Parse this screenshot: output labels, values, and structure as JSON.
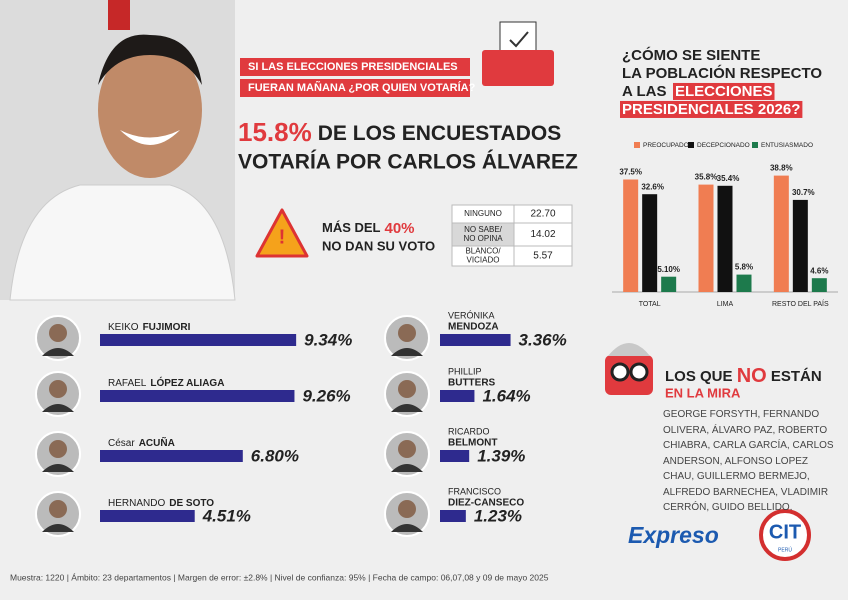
{
  "header": {
    "question": [
      "SI LAS ELECCIONES PRESIDENCIALES",
      "FUERAN MAÑANA ¿POR QUIEN VOTARÍA?"
    ],
    "headline": {
      "percent": "15.8%",
      "line1": "DE LOS ENCUESTADOS",
      "line2": "VOTARÍA POR CARLOS ÁLVAREZ"
    }
  },
  "warning": {
    "prefix": "MÁS DEL",
    "percent": "40%",
    "line2": "NO DAN SU VOTO"
  },
  "table": {
    "rows": [
      [
        [
          "NINGUNO"
        ],
        "22.70"
      ],
      [
        [
          "NO SABE/",
          "NO OPINA"
        ],
        "14.02"
      ],
      [
        [
          "BLANCO/",
          "VICIADO"
        ],
        "5.57"
      ]
    ]
  },
  "chart_data": [
    {
      "type": "bar",
      "title_lines": [
        "¿CÓMO SE SIENTE",
        "LA POBLACIÓN RESPECTO",
        "A LAS"
      ],
      "title_highlight": [
        "ELECCIONES",
        "PRESIDENCIALES 2026?"
      ],
      "categories": [
        "TOTAL",
        "LIMA",
        "RESTO DEL PAÍS"
      ],
      "ylim": [
        0,
        40
      ],
      "series": [
        {
          "name": "PREOCUPADO",
          "color": "#f07d52",
          "values": [
            37.5,
            35.8,
            38.8
          ],
          "value_labels": [
            "37.5%",
            "35.8%",
            "38.8%"
          ]
        },
        {
          "name": "DECEPCIONADO",
          "color": "#111111",
          "values": [
            32.6,
            35.4,
            30.7
          ],
          "value_labels": [
            "32.6%",
            "35.4%",
            "30.7%"
          ]
        },
        {
          "name": "ENTUSIASMADO",
          "color": "#1d7a4c",
          "values": [
            5.1,
            5.8,
            4.6
          ],
          "value_labels": [
            "5.10%",
            "5.8%",
            "4.6%"
          ]
        }
      ]
    },
    {
      "type": "bar",
      "orientation": "horizontal",
      "color": "#2e2a8e",
      "xlim": [
        0,
        10
      ],
      "categories": [
        [
          "KEIKO",
          "FUJIMORI"
        ],
        [
          "RAFAEL",
          "LÓPEZ ALIAGA"
        ],
        [
          "César",
          "ACUÑA"
        ],
        [
          "HERNANDO",
          "DE SOTO"
        ],
        [
          "VERÓNIKA",
          "MENDOZA"
        ],
        [
          "PHILLIP",
          "BUTTERS"
        ],
        [
          "RICARDO",
          "BELMONT"
        ],
        [
          "FRANCISCO",
          "DIEZ-CANSECO"
        ]
      ],
      "values": [
        9.34,
        9.26,
        6.8,
        4.51,
        3.36,
        1.64,
        1.39,
        1.23
      ],
      "value_labels": [
        "9.34%",
        "9.26%",
        "6.80%",
        "4.51%",
        "3.36%",
        "1.64%",
        "1.39%",
        "1.23%"
      ]
    }
  ],
  "not_in_focus": {
    "title": [
      "LOS QUE ",
      "NO",
      " ESTÁN"
    ],
    "subtitle": "EN LA MIRA",
    "names": "GEORGE FORSYTH, FERNANDO OLIVERA, ÁLVARO PAZ, ROBERTO CHIABRA, CARLA GARCÍA, CARLOS ANDERSON, ALFONSO LOPEZ CHAU, GUILLERMO BERMEJO, ALFREDO BARNECHEA, VLADIMIR CERRÓN, GUIDO BELLIDO."
  },
  "logos": {
    "expreso": "Expreso",
    "cit": "CIT",
    "cit_sub": "PERÚ"
  },
  "footer": "Muestra: 1220 | Ámbito: 23 departamentos | Margen de error: ±2.8% | Nivel de confianza: 95% | Fecha de campo: 06,07,08 y 09 de mayo 2025"
}
